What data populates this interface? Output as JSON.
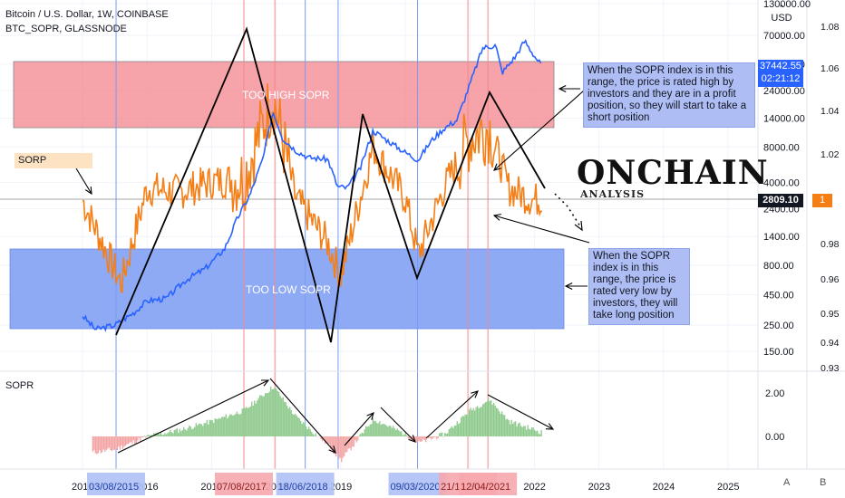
{
  "header": {
    "symbol_line": "Bitcoin / U.S. Dollar, 1W, COINBASE",
    "indicator_line": "BTC_SOPR, GLASSNODE"
  },
  "currency": "USD",
  "price_tag": {
    "price": "37442.55",
    "countdown": "02:21:12"
  },
  "sopr_tag": {
    "price": "2809.10",
    "value": "1"
  },
  "sorp_label": "SORP",
  "logo": {
    "line1": "ONCHAIN",
    "line2": "ANALYSIS"
  },
  "zones": {
    "high": "TOO HIGH SOPR",
    "low": "TOO LOW SOPR"
  },
  "annotations": {
    "high": "When the SOPR index is in this range, the price is rated high by investors and they are in a profit position, so they will start to take a short position",
    "low": "When the SOPR index is in this range, the price is rated very low by investors, they will take long position"
  },
  "pane2_label": "SOPR",
  "buttons": {
    "auto": "A",
    "log": "B"
  },
  "colors": {
    "price": "#2962ff",
    "sopr": "#f57f17",
    "high_zone": "#f48c94",
    "low_zone": "#7b9bf3",
    "pos_hist": "#8cc98b",
    "neg_hist": "#f4a3a3"
  },
  "chart_data": [
    {
      "type": "line",
      "title": "Bitcoin / U.S. Dollar, 1W, COINBASE",
      "scale": "log",
      "price_axis_ticks": [
        "130000.00",
        "70000.00",
        "40000.00",
        "24000.00",
        "14000.00",
        "8000.00",
        "4000.00",
        "2400.00",
        "1400.00",
        "800.00",
        "450.00",
        "250.00",
        "150.00"
      ],
      "sopr_axis_ticks": [
        "1.08",
        "1.06",
        "1.04",
        "1.02",
        "1",
        "0.98",
        "0.96",
        "0.95",
        "0.94",
        "0.93"
      ],
      "x_ticks": [
        "2015",
        "2016",
        "2017",
        "2018",
        "2019",
        "2020",
        "2021",
        "2022",
        "2023",
        "2024",
        "2025"
      ],
      "x_highlighted_dates": [
        "03/08/2015",
        "07/08/2017",
        "18/06/2018",
        "09/03/2020",
        "21/12/2020",
        "12/04/2021"
      ],
      "series": [
        {
          "name": "Bitcoin / U.S. Dollar",
          "x": [
            2015.0,
            2015.2,
            2015.5,
            2015.8,
            2016.0,
            2016.3,
            2016.6,
            2016.9,
            2017.2,
            2017.4,
            2017.6,
            2017.8,
            2017.95,
            2018.1,
            2018.3,
            2018.5,
            2018.8,
            2018.95,
            2019.1,
            2019.3,
            2019.5,
            2019.8,
            2020.0,
            2020.2,
            2020.4,
            2020.6,
            2020.8,
            2021.0,
            2021.2,
            2021.4,
            2021.5,
            2021.7,
            2021.85,
            2022.0,
            2022.1
          ],
          "values": [
            300,
            230,
            250,
            320,
            400,
            420,
            600,
            750,
            1100,
            2000,
            3200,
            6500,
            16000,
            9500,
            7500,
            6500,
            6300,
            3700,
            3600,
            5200,
            11000,
            8500,
            7200,
            6200,
            9000,
            11500,
            13500,
            27000,
            55000,
            58000,
            34000,
            46000,
            63000,
            47000,
            40000
          ]
        },
        {
          "name": "SOPR",
          "x": [
            2015.0,
            2015.6,
            2016.0,
            2016.5,
            2017.0,
            2017.5,
            2017.95,
            2018.3,
            2018.8,
            2019.0,
            2019.5,
            2020.0,
            2020.2,
            2020.6,
            2021.0,
            2021.3,
            2021.6,
            2022.0,
            2022.1
          ],
          "values": [
            0.999,
            0.958,
            1.005,
            1.003,
            1.008,
            1.01,
            1.05,
            1.0,
            0.978,
            0.962,
            1.025,
            1.0,
            0.972,
            1.005,
            1.03,
            1.035,
            1.005,
            0.999,
            1.0
          ]
        }
      ]
    },
    {
      "type": "bar",
      "title": "SOPR",
      "y_ticks": [
        "2.00",
        "0.00"
      ],
      "x": [
        2015.0,
        2015.5,
        2016.0,
        2016.5,
        2017.0,
        2017.5,
        2017.95,
        2018.3,
        2018.8,
        2019.0,
        2019.5,
        2020.0,
        2020.2,
        2020.6,
        2021.0,
        2021.3,
        2021.6,
        2022.0,
        2022.1
      ],
      "values": [
        -0.8,
        -0.6,
        0.0,
        0.3,
        0.7,
        1.2,
        2.3,
        0.9,
        -0.4,
        -1.1,
        0.8,
        0.1,
        -0.3,
        0.1,
        1.2,
        1.7,
        0.7,
        0.3,
        0.2
      ]
    }
  ]
}
